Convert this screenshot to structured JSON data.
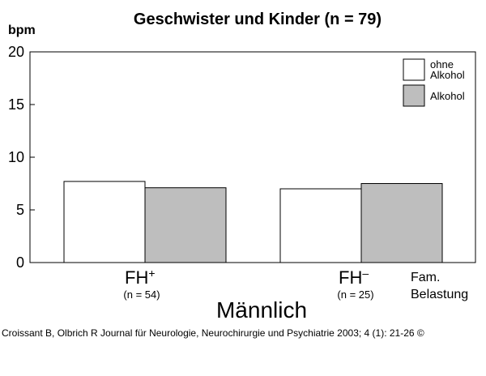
{
  "chart_data": {
    "type": "bar",
    "title": "Geschwister und Kinder (n = 79)",
    "ylabel": "bpm",
    "ylim": [
      0,
      20
    ],
    "yticks": [
      0,
      5,
      10,
      15,
      20
    ],
    "categories": [
      {
        "main": "FH",
        "sup": "+",
        "sub": "(n = 54)"
      },
      {
        "main": "FH",
        "sup": "–",
        "sub": "(n = 25)"
      }
    ],
    "series": [
      {
        "name_lines": [
          "ohne",
          "Alkohol"
        ],
        "color": "#ffffff",
        "values": [
          7.7,
          7.0
        ]
      },
      {
        "name_lines": [
          "Alkohol"
        ],
        "color": "#bebebe",
        "values": [
          7.1,
          7.5
        ]
      }
    ],
    "xcaption_lines": [
      "Fam.",
      "Belastung"
    ],
    "subject": "Männlich",
    "grid": false,
    "legend": "top-right"
  },
  "citation": "Croissant B, Olbrich R Journal für Neurologie, Neurochirurgie und Psychiatrie 2003; 4 (1): 21-26 ©"
}
